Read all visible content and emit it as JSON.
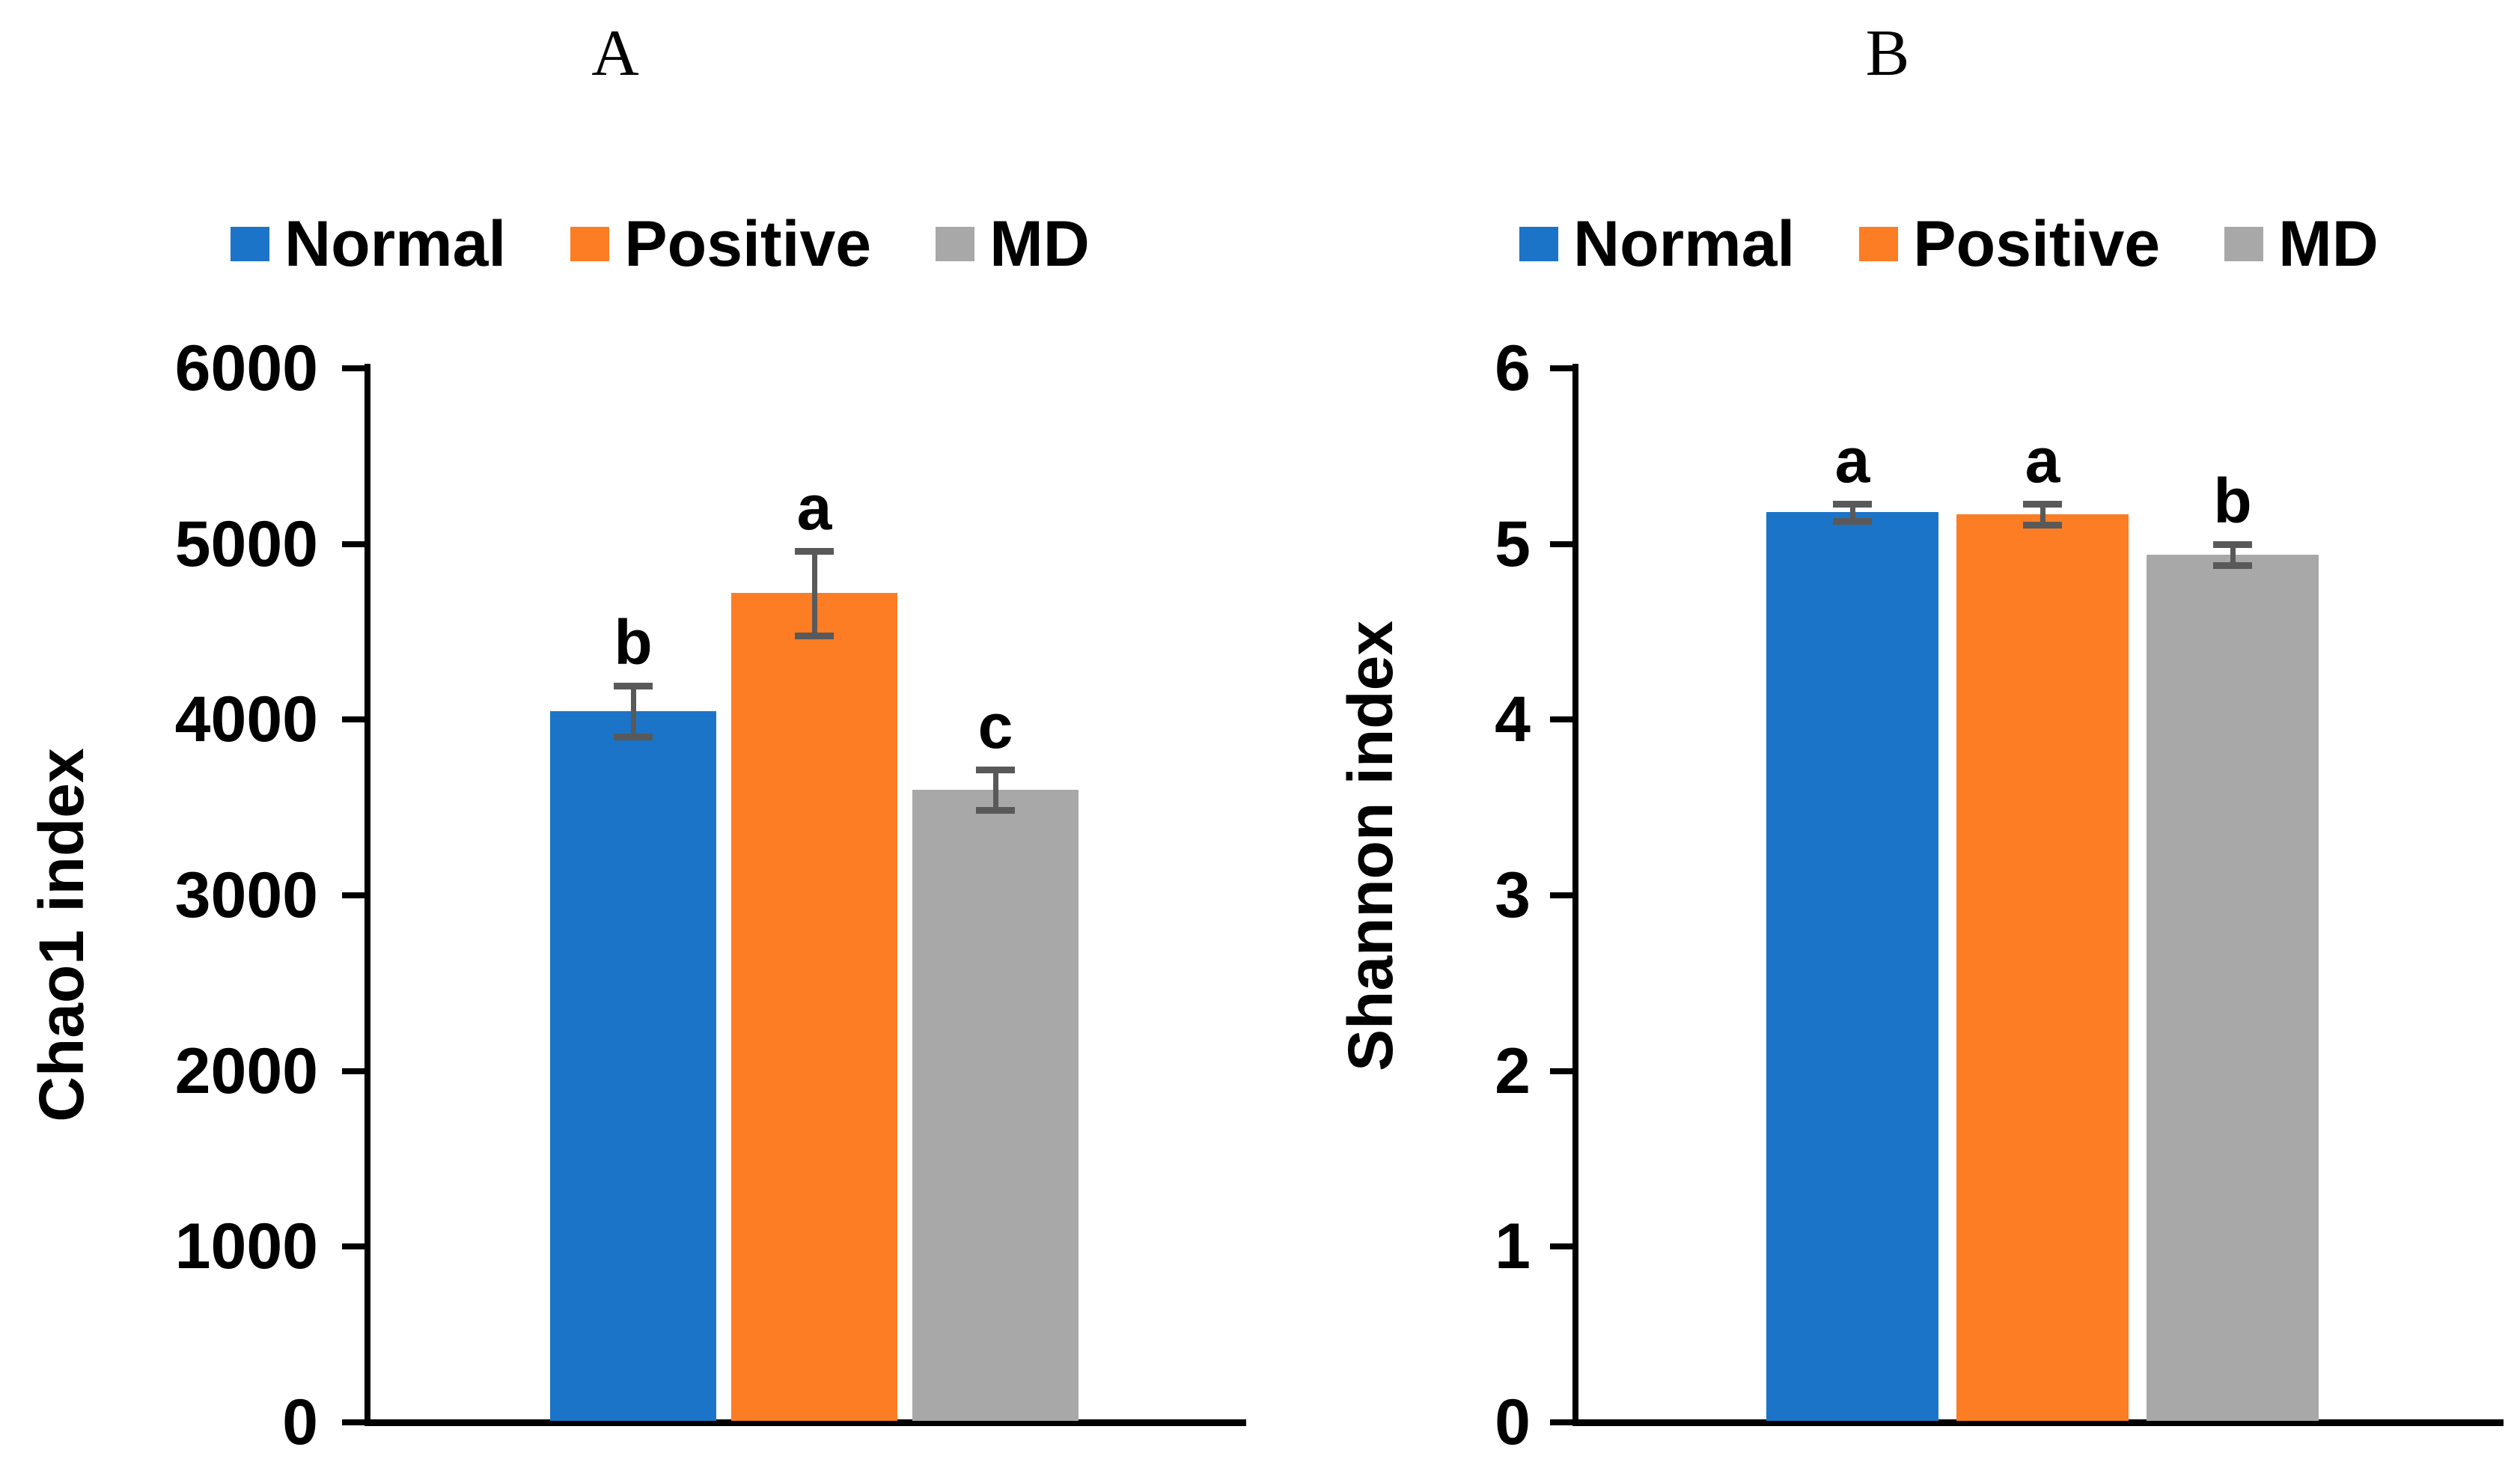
{
  "figure": {
    "background": "#FFFFFF",
    "colors": {
      "axis": "#000000",
      "error_bar": "#595959",
      "text": "#000000"
    }
  },
  "legend": {
    "position": "top",
    "items": [
      {
        "label": "Normal",
        "color": "#1B74C8"
      },
      {
        "label": "Positive",
        "color": "#FC7D24"
      },
      {
        "label": "MD",
        "color": "#A8A8A8"
      }
    ]
  },
  "chart_data": [
    {
      "type": "bar",
      "panel_label": "A",
      "title": "",
      "xlabel": "",
      "ylabel": "Chao1 index",
      "categories": [
        "Normal",
        "Positive",
        "MD"
      ],
      "values": [
        4050,
        4720,
        3600
      ],
      "errors": [
        145,
        240,
        115
      ],
      "sig_letters": [
        "b",
        "a",
        "c"
      ],
      "ylim": [
        0,
        6000
      ],
      "ytick_step": 1000,
      "yticks": [
        0,
        1000,
        2000,
        3000,
        4000,
        5000,
        6000
      ],
      "grid": false,
      "legend_position": "top"
    },
    {
      "type": "bar",
      "panel_label": "B",
      "title": "",
      "xlabel": "",
      "ylabel": "Shannon index",
      "categories": [
        "Normal",
        "Positive",
        "MD"
      ],
      "values": [
        5.18,
        5.17,
        4.94
      ],
      "errors": [
        0.05,
        0.06,
        0.06
      ],
      "sig_letters": [
        "a",
        "a",
        "b"
      ],
      "ylim": [
        0,
        6
      ],
      "ytick_step": 1,
      "yticks": [
        0,
        1,
        2,
        3,
        4,
        5,
        6
      ],
      "grid": false,
      "legend_position": "top"
    }
  ]
}
